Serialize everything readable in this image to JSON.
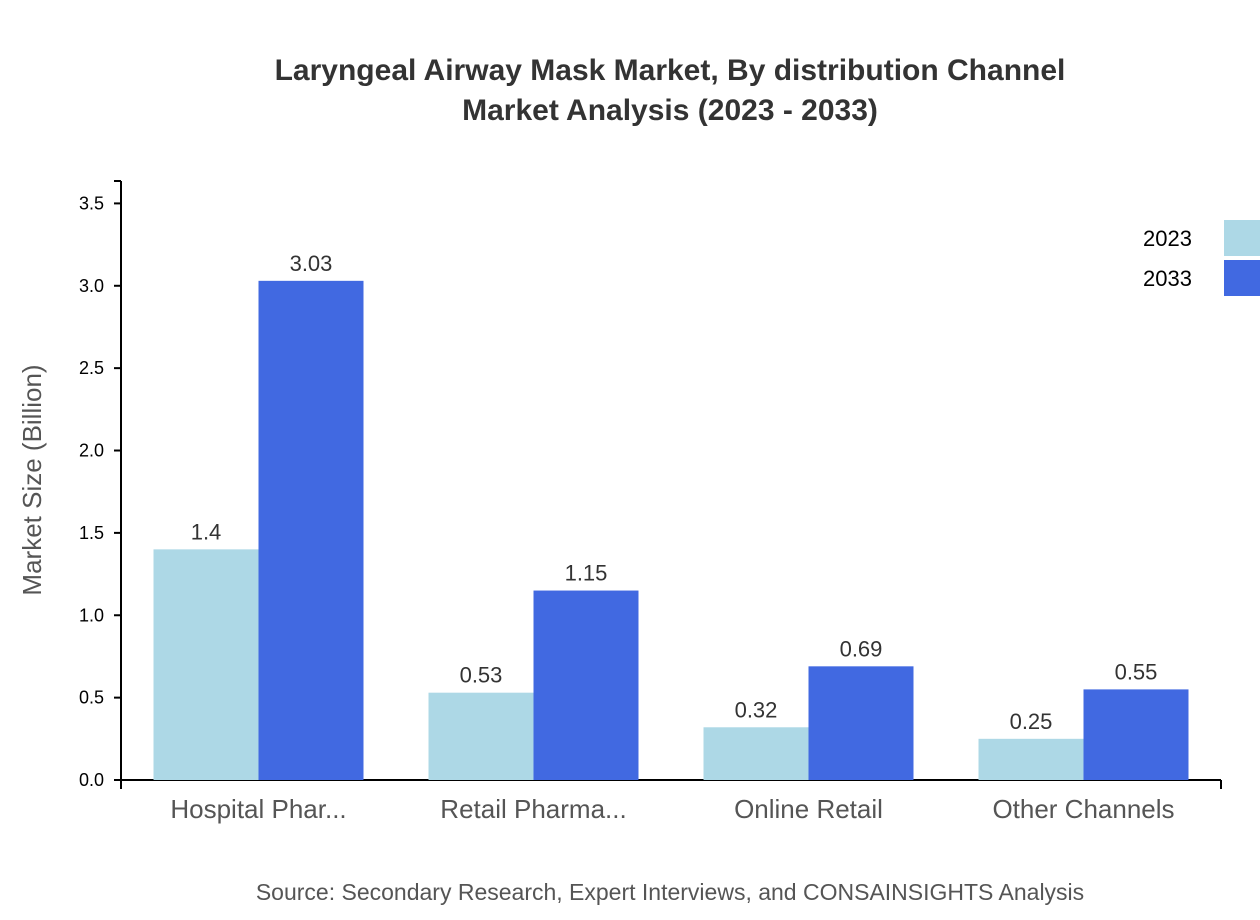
{
  "chart_data": {
    "type": "bar",
    "title": "Laryngeal Airway Mask Market, By distribution Channel",
    "subtitle": "Market Analysis (2023 - 2033)",
    "xlabel": "",
    "ylabel": "Market Size (Billion)",
    "categories": [
      "Hospital Phar...",
      "Retail Pharma...",
      "Online Retail",
      "Other Channels"
    ],
    "series": [
      {
        "name": "2023",
        "color": "#add8e6",
        "values": [
          1.4,
          0.53,
          0.32,
          0.25
        ]
      },
      {
        "name": "2033",
        "color": "#4169e1",
        "values": [
          3.03,
          1.15,
          0.69,
          0.55
        ]
      }
    ],
    "ylim": [
      0,
      3.636
    ],
    "yticks": [
      "0.0",
      "0.5",
      "1.0",
      "1.5",
      "2.0",
      "2.5",
      "3.0",
      "3.5"
    ],
    "grid": false,
    "legend_position": "top-right",
    "source": "Source: Secondary Research, Expert Interviews, and CONSAINSIGHTS Analysis"
  }
}
